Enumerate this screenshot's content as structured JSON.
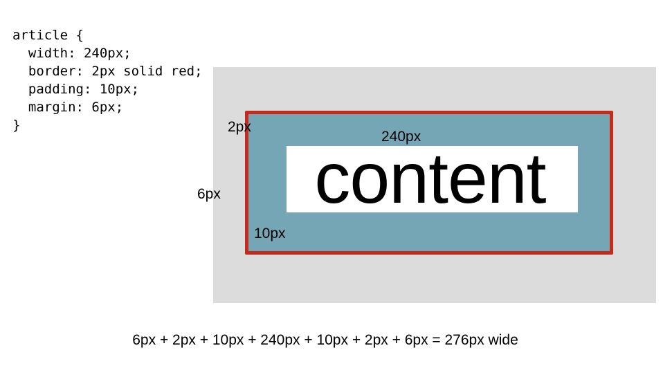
{
  "code": {
    "lines": [
      "article {",
      "  width: 240px;",
      "  border: 2px solid red;",
      "  padding: 10px;",
      "  margin: 6px;",
      "}"
    ]
  },
  "diagram": {
    "content_label": "content",
    "border_label": "2px",
    "width_label": "240px",
    "margin_label": "6px",
    "padding_label": "10px",
    "colors": {
      "margin_area": "#dcdcdc",
      "padding_area": "#74a6b6",
      "border": "#c42b1c",
      "content_area": "#ffffff"
    }
  },
  "equation": "6px + 2px + 10px + 240px + 10px + 2px + 6px = 276px wide"
}
